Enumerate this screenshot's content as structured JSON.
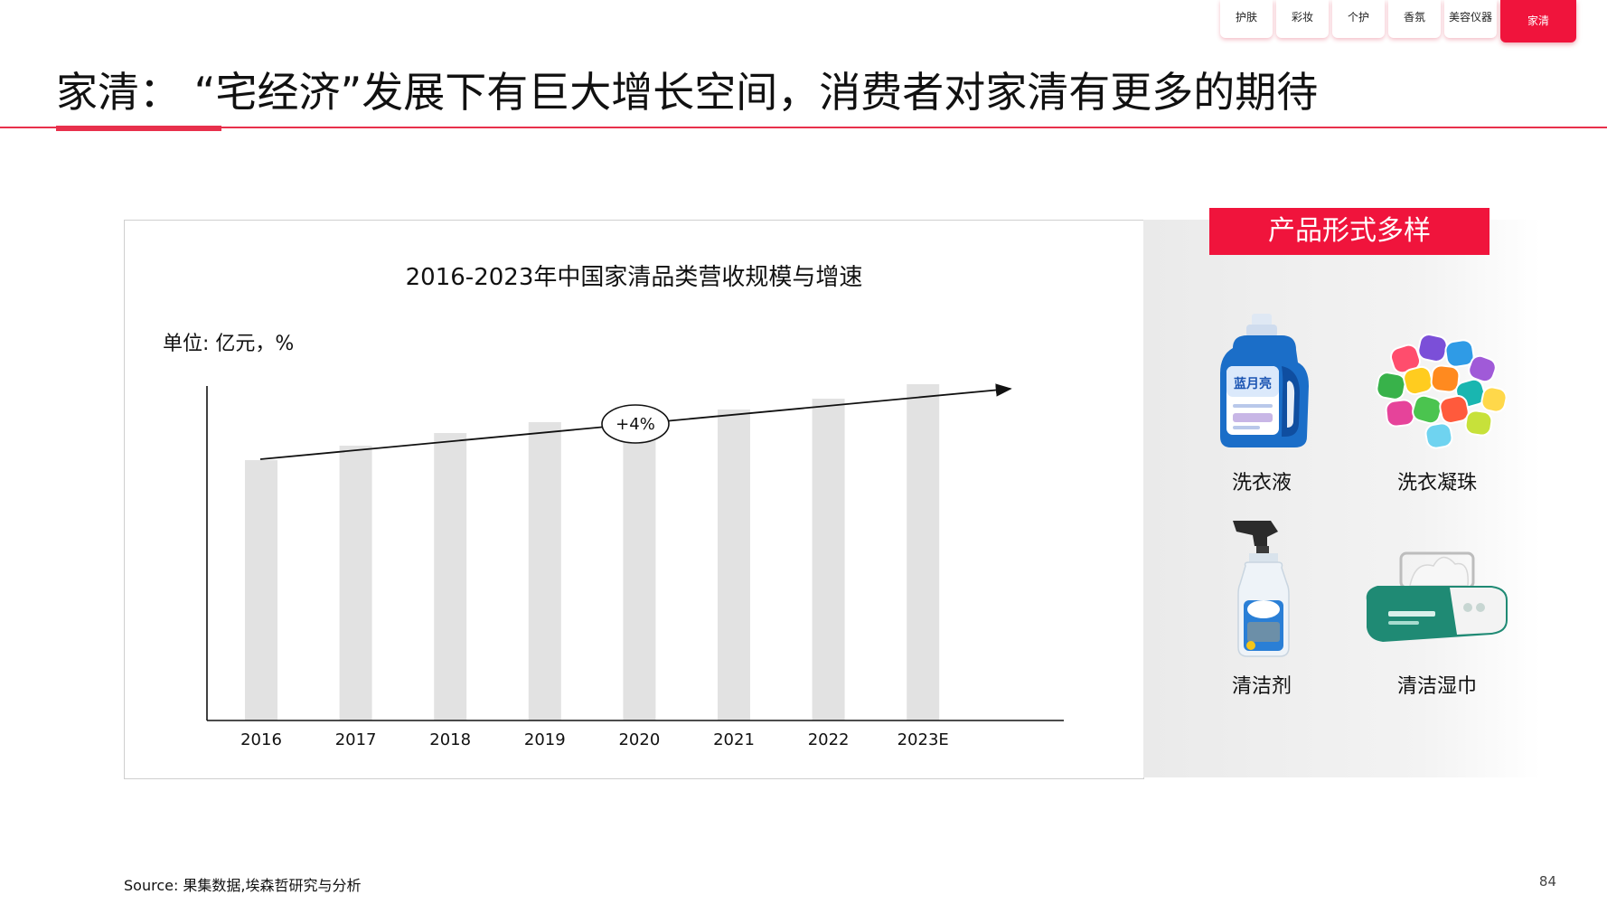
{
  "nav": {
    "tabs": [
      {
        "label": "护肤",
        "active": false
      },
      {
        "label": "彩妆",
        "active": false
      },
      {
        "label": "个护",
        "active": false
      },
      {
        "label": "香氛",
        "active": false
      },
      {
        "label": "美容仪器",
        "active": false
      },
      {
        "label": "家清",
        "active": true
      }
    ]
  },
  "page": {
    "title": "家清：  “宅经济”发展下有巨大增长空间，消费者对家清有更多的期待",
    "source": "Source: 果集数据,埃森哲研究与分析",
    "page_number": "84"
  },
  "chart_data": {
    "type": "bar",
    "title": "2016-2023年中国家清品类营收规模与增速",
    "unit_label": "单位: 亿元，%",
    "categories": [
      "2016",
      "2017",
      "2018",
      "2019",
      "2020",
      "2021",
      "2022",
      "2023E"
    ],
    "values": [
      72,
      76,
      79.5,
      82.5,
      84.5,
      86,
      89,
      93
    ],
    "ylim": [
      0,
      100
    ],
    "y_axis_ticks_shown": false,
    "grid": false,
    "bar_color": "#e2e2e2",
    "annotation": {
      "label": "+4%",
      "type": "growth-arrow"
    }
  },
  "products": {
    "header": "产品形式多样",
    "items": [
      {
        "name": "洗衣液",
        "icon": "laundry-detergent-bottle"
      },
      {
        "name": "洗衣凝珠",
        "icon": "laundry-pods"
      },
      {
        "name": "清洁剂",
        "icon": "spray-bottle"
      },
      {
        "name": "清洁湿巾",
        "icon": "wet-wipes-pack"
      }
    ],
    "bottle_label": "蓝月亮"
  },
  "colors": {
    "accent": "#f0143c",
    "rule": "#e8304c"
  }
}
